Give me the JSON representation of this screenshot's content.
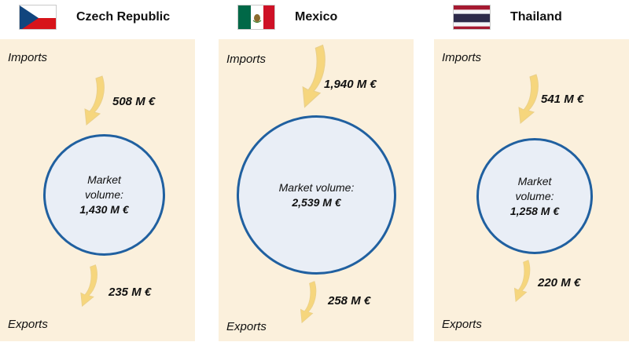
{
  "labels": {
    "imports": "Imports",
    "exports": "Exports"
  },
  "countries": [
    {
      "name": "Czech Republic",
      "flag": "flag-czech-republic",
      "imports": "508 M €",
      "market_label": "Market volume:",
      "market_value": "1,430 M €",
      "exports": "235 M €"
    },
    {
      "name": "Mexico",
      "flag": "flag-mexico",
      "imports": "1,940 M €",
      "market_label": "Market volume:",
      "market_value": "2,539 M €",
      "exports": "258 M €"
    },
    {
      "name": "Thailand",
      "flag": "flag-thailand",
      "imports": "541 M €",
      "market_label": "Market volume:",
      "market_value": "1,258 M €",
      "exports": "220 M €"
    }
  ],
  "colors": {
    "panel": "#fbf0dc",
    "bubble_fill": "#e9eef6",
    "bubble_border": "#2060a0",
    "arrow": "#f6d67d"
  }
}
